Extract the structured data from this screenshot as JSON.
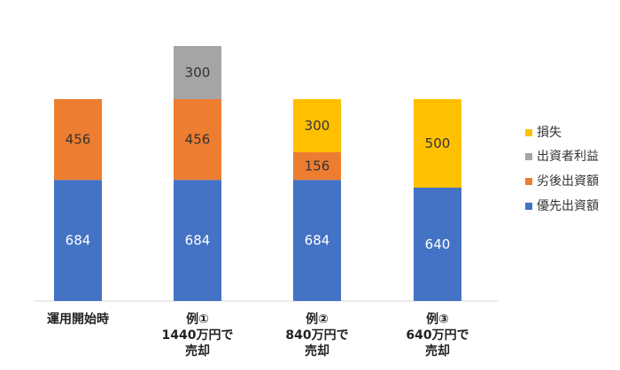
{
  "chart_data": {
    "type": "bar",
    "stacked": true,
    "categories": [
      [
        "運用開始時"
      ],
      [
        "例①",
        "1440万円で",
        "売却"
      ],
      [
        "例②",
        "840万円で",
        "売却"
      ],
      [
        "例③",
        "640万円で",
        "売却"
      ]
    ],
    "series": [
      {
        "name": "優先出資額",
        "color": "#4472C4",
        "label_color": "#ffffff",
        "values": [
          684,
          684,
          684,
          640
        ]
      },
      {
        "name": "劣後出資額",
        "color": "#ED7D31",
        "label_color": "#333333",
        "values": [
          456,
          456,
          156,
          0
        ]
      },
      {
        "name": "出資者利益",
        "color": "#A5A5A5",
        "label_color": "#333333",
        "values": [
          0,
          300,
          0,
          0
        ]
      },
      {
        "name": "損失",
        "color": "#FFC000",
        "label_color": "#333333",
        "values": [
          0,
          0,
          300,
          500
        ]
      }
    ],
    "ylim": [
      0,
      1440
    ],
    "grid": false,
    "legend_position": "right",
    "legend_order": [
      "損失",
      "出資者利益",
      "劣後出資額",
      "優先出資額"
    ]
  }
}
